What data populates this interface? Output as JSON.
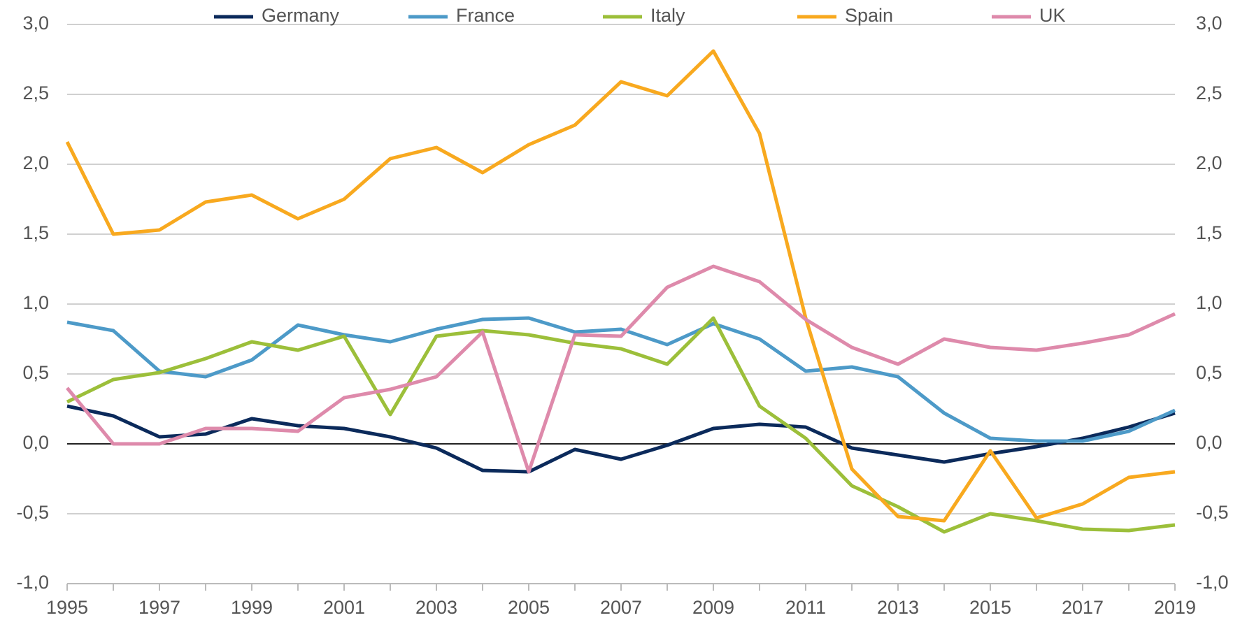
{
  "chart_data": {
    "type": "line",
    "categories": [
      "1995",
      null,
      "1997",
      null,
      "1999",
      null,
      "2001",
      null,
      "2003",
      null,
      "2005",
      null,
      "2007",
      null,
      "2009",
      null,
      "2011",
      null,
      "2013",
      null,
      "2015",
      null,
      "2017",
      null,
      "2019"
    ],
    "series": [
      {
        "name": "Germany",
        "color": "#0b2a5b",
        "values": [
          0.27,
          0.2,
          0.05,
          0.07,
          0.18,
          0.13,
          0.11,
          0.05,
          -0.03,
          -0.19,
          -0.2,
          -0.04,
          -0.11,
          -0.01,
          0.11,
          0.14,
          0.12,
          -0.03,
          -0.08,
          -0.13,
          -0.07,
          -0.02,
          0.04,
          0.12,
          0.22
        ]
      },
      {
        "name": "France",
        "color": "#4d9ac8",
        "values": [
          0.87,
          0.81,
          0.52,
          0.48,
          0.6,
          0.85,
          0.78,
          0.73,
          0.82,
          0.89,
          0.9,
          0.8,
          0.82,
          0.71,
          0.86,
          0.75,
          0.52,
          0.55,
          0.48,
          0.22,
          0.04,
          0.02,
          0.02,
          0.09,
          0.24
        ]
      },
      {
        "name": "Italy",
        "color": "#9cbf3a",
        "values": [
          0.3,
          0.46,
          0.51,
          0.61,
          0.73,
          0.67,
          0.77,
          0.21,
          0.77,
          0.81,
          0.78,
          0.72,
          0.68,
          0.57,
          0.9,
          0.27,
          0.04,
          -0.3,
          -0.45,
          -0.63,
          -0.5,
          -0.55,
          -0.61,
          -0.62,
          -0.58
        ]
      },
      {
        "name": "Spain",
        "color": "#f8a91f",
        "axis": "y2",
        "values": [
          2.16,
          1.5,
          1.53,
          1.73,
          1.78,
          1.61,
          1.75,
          2.04,
          2.12,
          1.94,
          2.14,
          2.28,
          2.59,
          2.49,
          2.81,
          2.22,
          0.9,
          -0.18,
          -0.52,
          -0.55,
          -0.05,
          -0.53,
          -0.43,
          -0.24,
          -0.2
        ]
      },
      {
        "name": "UK",
        "color": "#de8aab",
        "axis": "y2",
        "values": [
          0.4,
          0.0,
          0.0,
          0.11,
          0.11,
          0.09,
          0.33,
          0.39,
          0.48,
          0.8,
          -0.2,
          0.78,
          0.77,
          1.12,
          1.27,
          1.16,
          0.89,
          0.69,
          0.57,
          0.75,
          0.69,
          0.67,
          0.72,
          0.78,
          0.93
        ]
      }
    ],
    "ylim": [
      -1,
      3
    ],
    "yticks": [
      {
        "value": -1,
        "label": "-1,0"
      },
      {
        "value": -0.5,
        "label": "-0,5"
      },
      {
        "value": 0,
        "label": "0,0"
      },
      {
        "value": 0.5,
        "label": "0,5"
      },
      {
        "value": 1,
        "label": "1,0"
      },
      {
        "value": 1.5,
        "label": "1,5"
      },
      {
        "value": 2,
        "label": "2,0"
      },
      {
        "value": 2.5,
        "label": "2,5"
      },
      {
        "value": 3,
        "label": "3,0"
      }
    ],
    "y2lim": [
      -1,
      3
    ],
    "y2ticks": [
      {
        "value": -1,
        "label": "-1,0"
      },
      {
        "value": -0.5,
        "label": "-0,5"
      },
      {
        "value": 0,
        "label": "0,0"
      },
      {
        "value": 0.5,
        "label": "0,5"
      },
      {
        "value": 1,
        "label": "1,0"
      },
      {
        "value": 1.5,
        "label": "1,5"
      },
      {
        "value": 2,
        "label": "2,0"
      },
      {
        "value": 2.5,
        "label": "2,5"
      },
      {
        "value": 3,
        "label": "3,0"
      }
    ],
    "grid": true,
    "legend": "top"
  }
}
